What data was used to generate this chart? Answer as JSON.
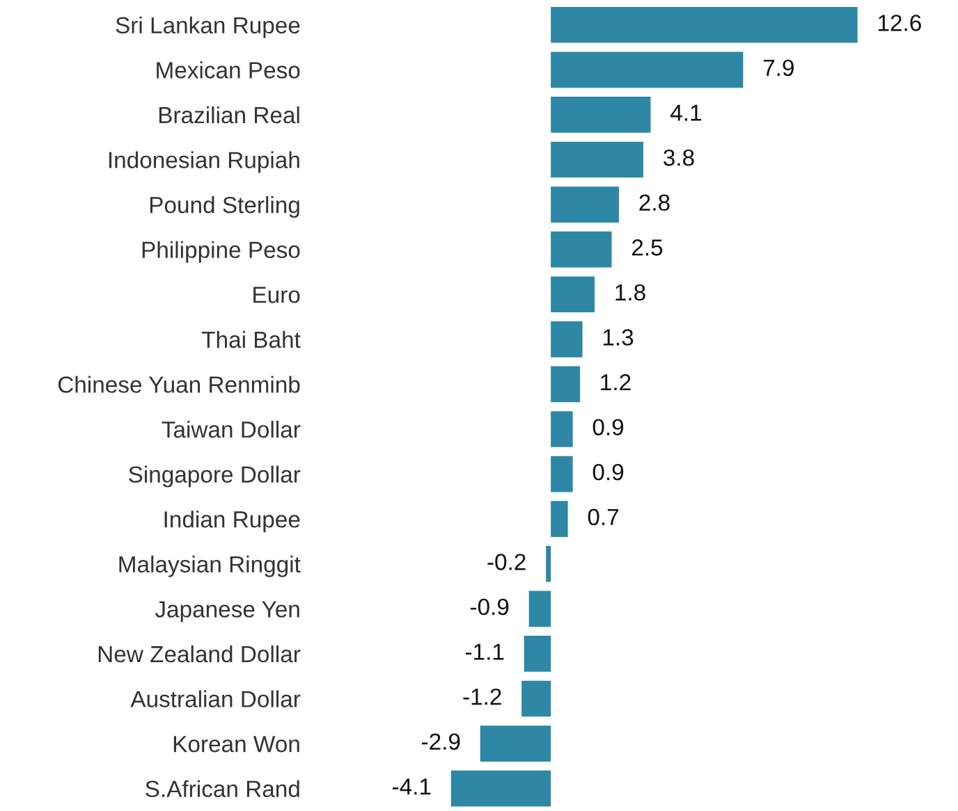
{
  "chart_data": {
    "type": "bar",
    "orientation": "horizontal",
    "categories": [
      "Sri Lankan Rupee",
      "Mexican Peso",
      "Brazilian Real",
      "Indonesian Rupiah",
      "Pound Sterling",
      "Philippine Peso",
      "Euro",
      "Thai Baht",
      "Chinese Yuan Renminb",
      "Taiwan Dollar",
      "Singapore Dollar",
      "Indian Rupee",
      "Malaysian Ringgit",
      "Japanese Yen",
      "New Zealand Dollar",
      "Australian Dollar",
      "Korean Won",
      "S.African Rand"
    ],
    "values": [
      12.6,
      7.9,
      4.1,
      3.8,
      2.8,
      2.5,
      1.8,
      1.3,
      1.2,
      0.9,
      0.9,
      0.7,
      -0.2,
      -0.9,
      -1.1,
      -1.2,
      -2.9,
      -4.1
    ],
    "color": "#2e87a5",
    "data_labels": true,
    "tick_labels": "y",
    "grid": false,
    "legend": false
  }
}
